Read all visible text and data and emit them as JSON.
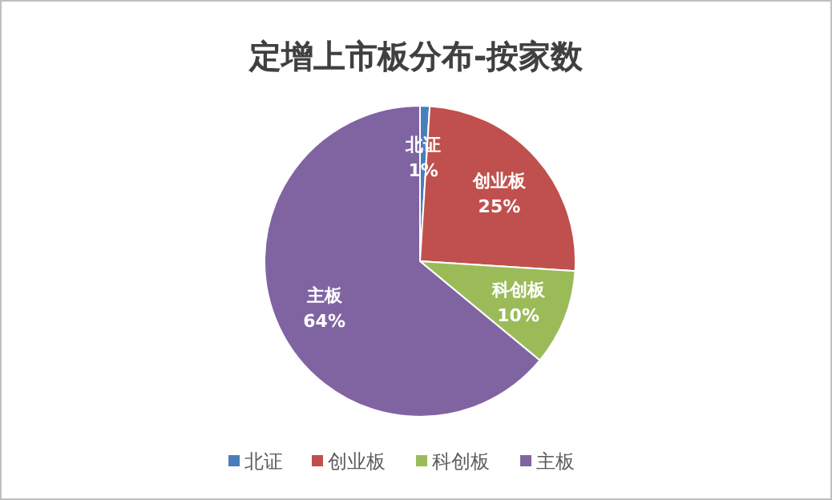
{
  "chart_data": {
    "type": "pie",
    "title": "定增上市板分布-按家数",
    "categories": [
      "北证",
      "创业板",
      "科创板",
      "主板"
    ],
    "values": [
      1,
      25,
      10,
      64
    ],
    "colors": [
      "#4a7ebb",
      "#c0504d",
      "#9bbb59",
      "#8064a2"
    ],
    "value_labels": [
      "1%",
      "25%",
      "10%",
      "64%"
    ],
    "legend": "bottom"
  }
}
